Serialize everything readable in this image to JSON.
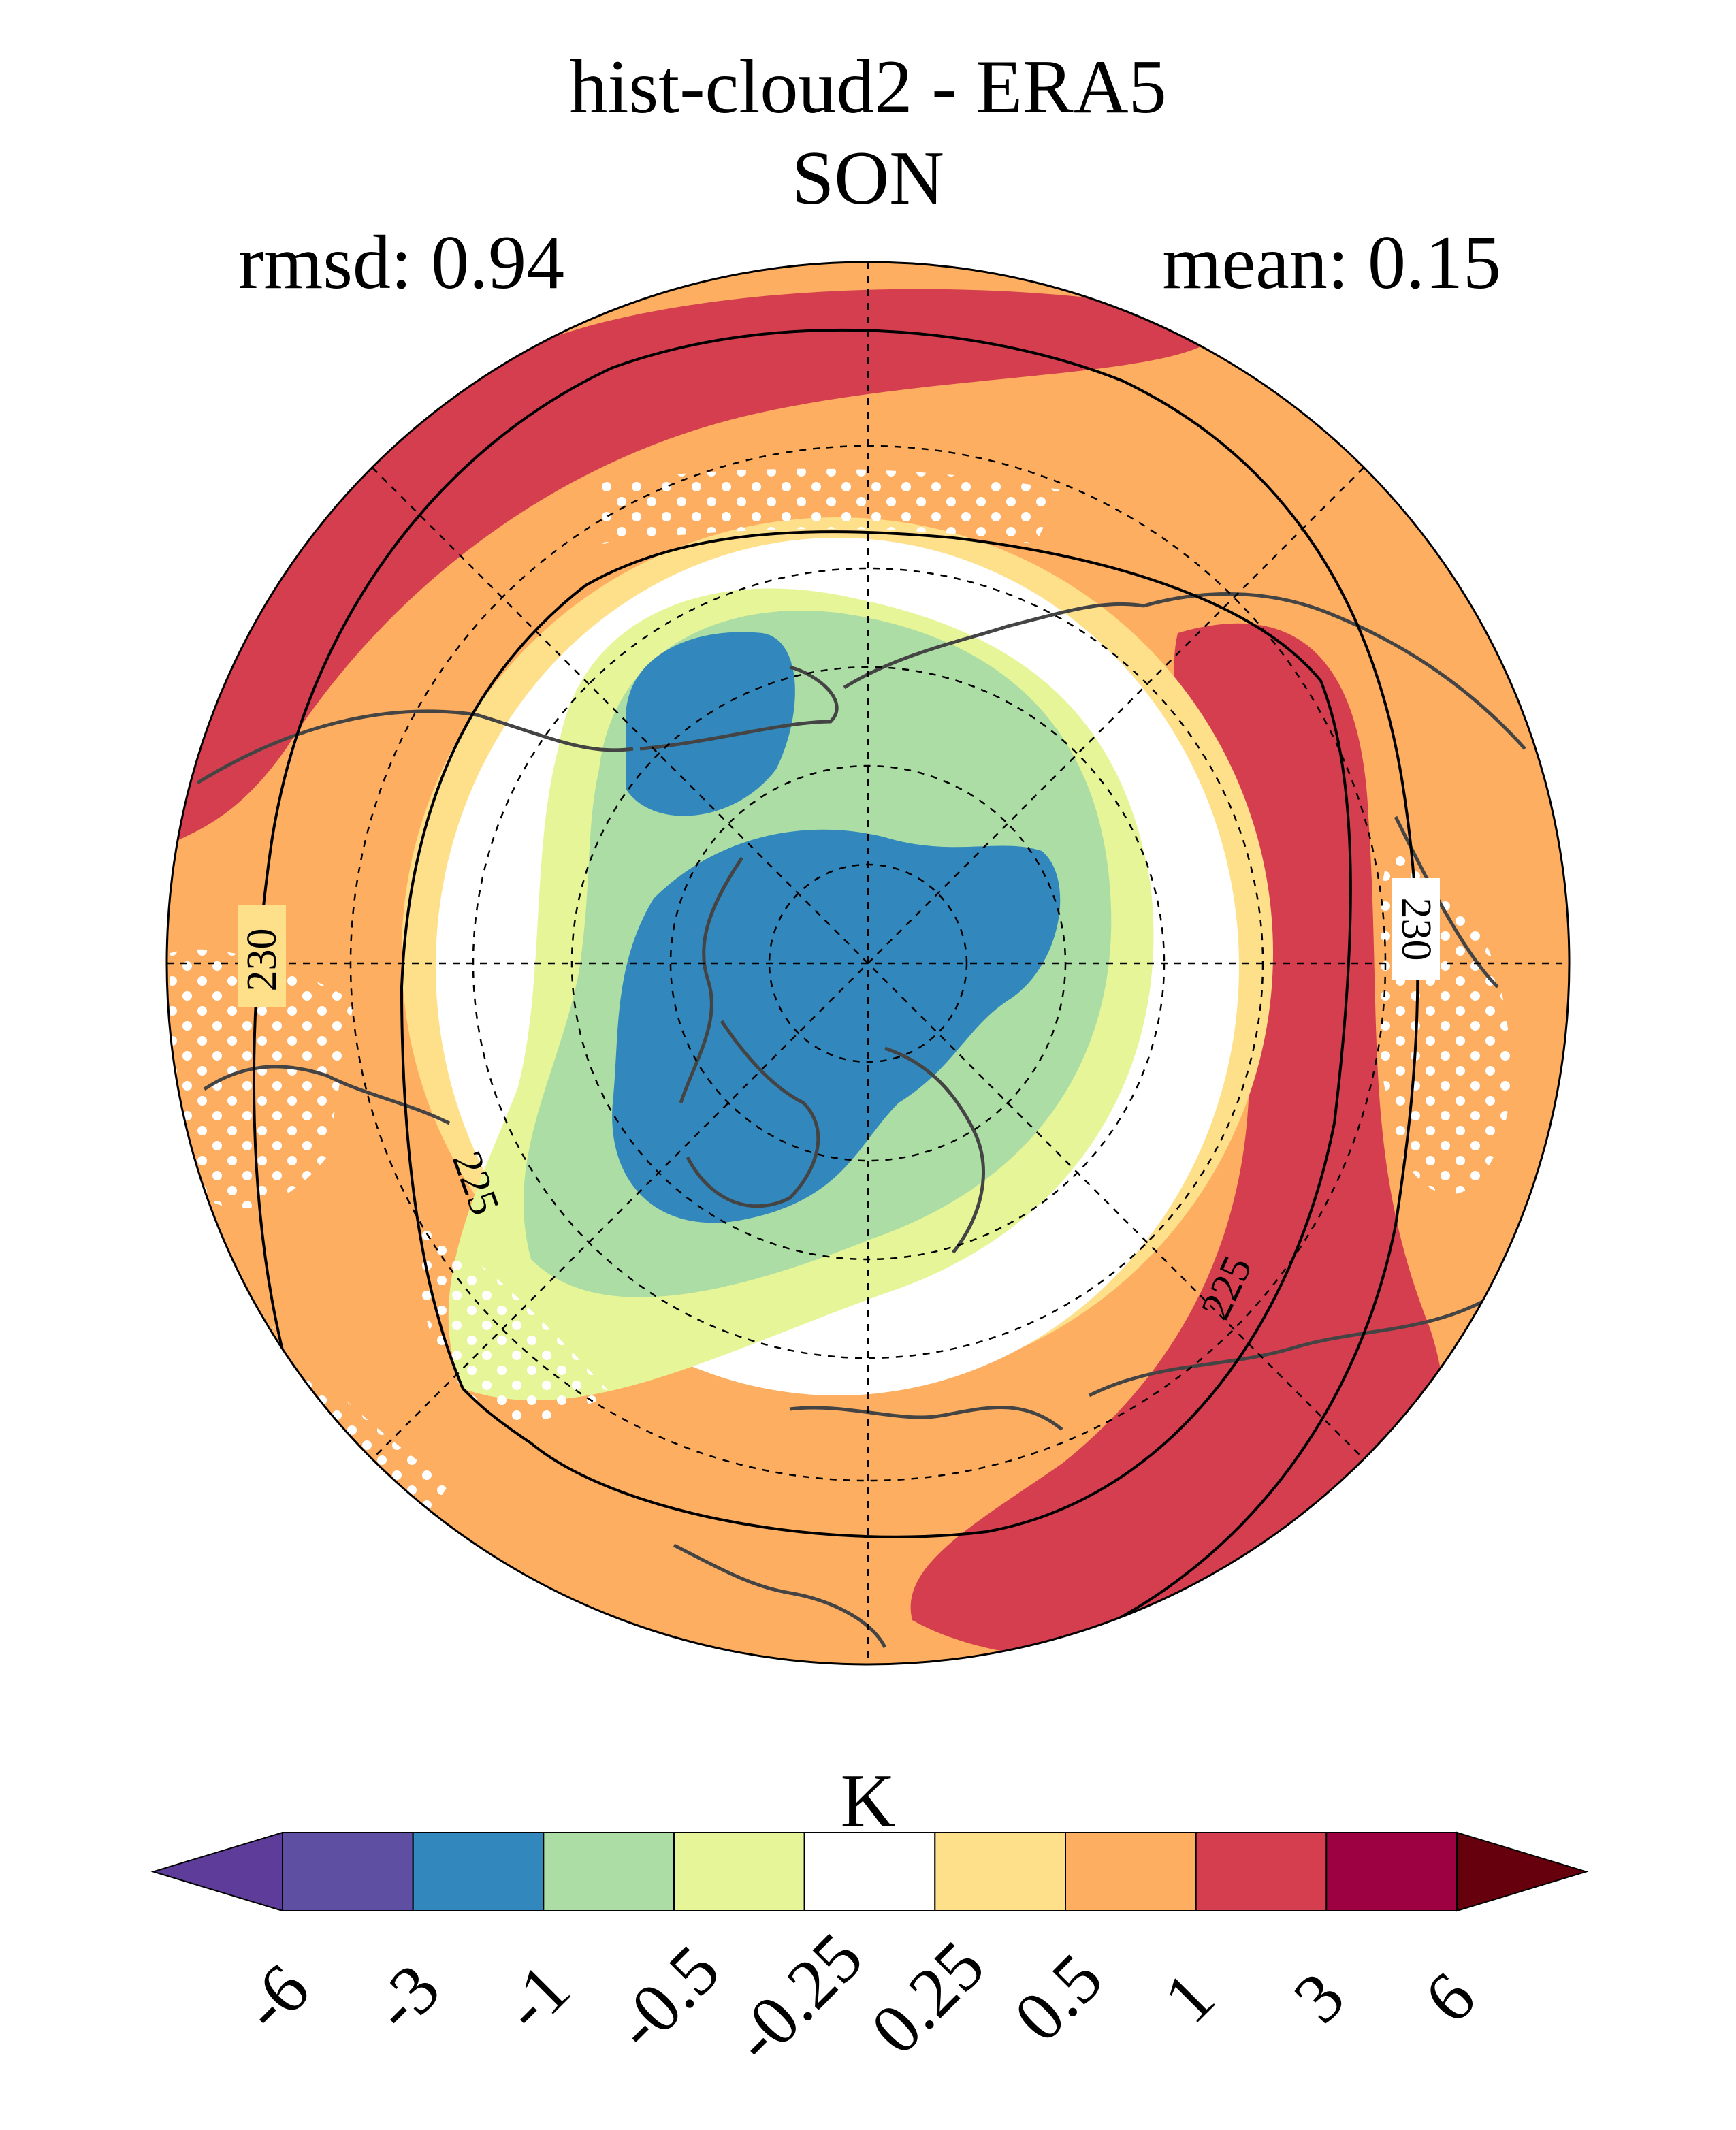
{
  "title": "hist-cloud2 - ERA5",
  "season": "SON",
  "stats": {
    "rmsd": "rmsd: 0.94",
    "mean": "mean: 0.15"
  },
  "projection": "north polar stereographic",
  "contours": [
    {
      "label": "230"
    },
    {
      "label": "225"
    }
  ],
  "colorbar": {
    "unit": "K",
    "ticks": [
      "-6",
      "-3",
      "-1",
      "-0.5",
      "-0.25",
      "0.25",
      "0.5",
      "1",
      "3",
      "6"
    ],
    "colors": [
      "#5e3c99",
      "#5e4fa2",
      "#3288bd",
      "#abdda4",
      "#e6f598",
      "#ffffff",
      "#fee08b",
      "#fdae61",
      "#d53e4f",
      "#9e0142",
      "#67000d"
    ],
    "extend": "both"
  },
  "legend_colors": {
    "strong_positive": "#d53e4f",
    "positive": "#fdae61",
    "weak_positive": "#fee08b",
    "neutral": "#ffffff",
    "weak_negative": "#e6f598",
    "negative": "#abdda4",
    "strong_negative": "#3288bd"
  }
}
